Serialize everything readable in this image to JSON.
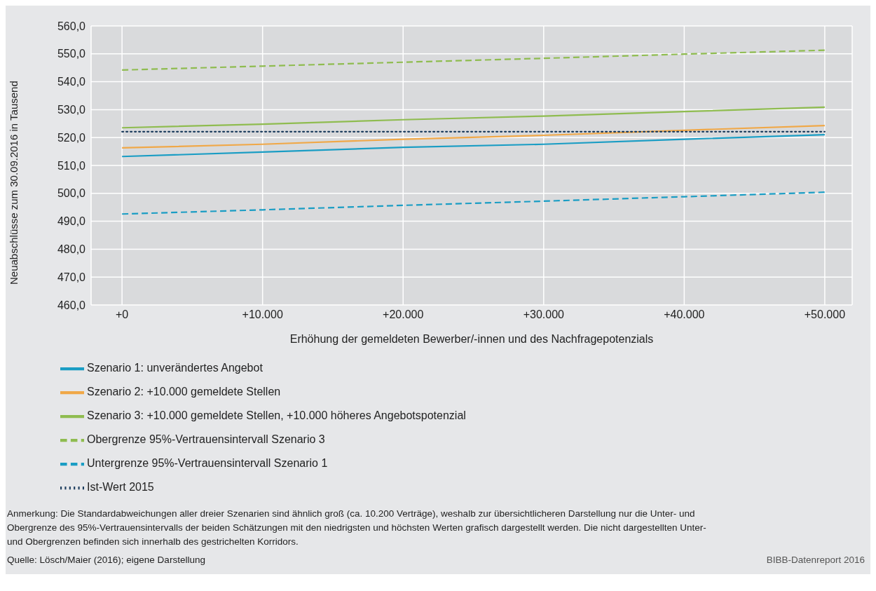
{
  "chart_data": {
    "type": "line",
    "xlabel": "Erhöhung der gemeldeten Bewerber/-innen und des Nachfragepotenzials",
    "ylabel": "Neuabschlüsse zum 30.09.2016 in Tausend",
    "x": [
      0,
      10000,
      20000,
      30000,
      40000,
      50000
    ],
    "xlim": [
      -2200,
      51950
    ],
    "xticks": [
      {
        "value": 0,
        "label": "+0"
      },
      {
        "value": 10000,
        "label": "+10.000"
      },
      {
        "value": 20000,
        "label": "+20.000"
      },
      {
        "value": 30000,
        "label": "+30.000"
      },
      {
        "value": 40000,
        "label": "+40.000"
      },
      {
        "value": 50000,
        "label": "+50.000"
      }
    ],
    "ylim": [
      460,
      560
    ],
    "yticks": [
      {
        "value": 460,
        "label": "460,0"
      },
      {
        "value": 470,
        "label": "470,0"
      },
      {
        "value": 480,
        "label": "480,0"
      },
      {
        "value": 490,
        "label": "490,0"
      },
      {
        "value": 500,
        "label": "500,0"
      },
      {
        "value": 510,
        "label": "510,0"
      },
      {
        "value": 520,
        "label": "520,0"
      },
      {
        "value": 530,
        "label": "530,0"
      },
      {
        "value": 540,
        "label": "540,0"
      },
      {
        "value": 550,
        "label": "550,0"
      },
      {
        "value": 560,
        "label": "560,0"
      }
    ],
    "grid": true,
    "legend": "bottom",
    "marker": "none",
    "series": [
      {
        "name": "Szenario 1: unverändertes Angebot",
        "color": "#1a9dc4",
        "line_style": "solid",
        "values": [
          513.2,
          514.8,
          516.5,
          517.6,
          519.4,
          521.0
        ]
      },
      {
        "name": "Szenario 2: +10.000 gemeldete Stellen",
        "color": "#f0a848",
        "line_style": "solid",
        "values": [
          516.3,
          517.6,
          519.4,
          520.8,
          522.6,
          524.3
        ]
      },
      {
        "name": "Szenario 3: +10.000 gemeldete Stellen, +10.000 höheres Angebotspotenzial",
        "color": "#8fbc50",
        "line_style": "solid",
        "values": [
          523.5,
          524.8,
          526.4,
          527.7,
          529.3,
          530.9
        ]
      },
      {
        "name": "Obergrenze 95%-Vertrauensintervall Szenario 3",
        "color": "#8fbc50",
        "line_style": "dashed",
        "values": [
          544.2,
          545.6,
          547.0,
          548.4,
          549.9,
          551.3
        ]
      },
      {
        "name": "Untergrenze 95%-Vertrauensintervall Szenario 1",
        "color": "#1a9dc4",
        "line_style": "dashed",
        "values": [
          492.6,
          494.1,
          495.7,
          497.2,
          498.8,
          500.4
        ]
      },
      {
        "name": "Ist-Wert 2015",
        "color": "#1f3f5f",
        "line_style": "dotted",
        "values": [
          522.1,
          522.1,
          522.1,
          522.1,
          522.1,
          522.1
        ]
      }
    ],
    "annotations": [
      "Anmerkung: Die Standardabweichungen aller dreier Szenarien sind ähnlich groß (ca. 10.200 Verträge), weshalb zur übersichtlicheren Darstellung nur die Unter- und Obergrenze des 95%-Vertrauensintervalls der beiden Schätzungen mit den niedrigsten und höchsten Werten grafisch dargestellt werden. Die nicht dargestellten Unter- und Obergrenzen befinden sich innerhalb des gestrichelten Korridors.",
      "Quelle: Lösch/Maier (2016); eigene Darstellung",
      "BIBB-Datenreport 2016"
    ]
  }
}
